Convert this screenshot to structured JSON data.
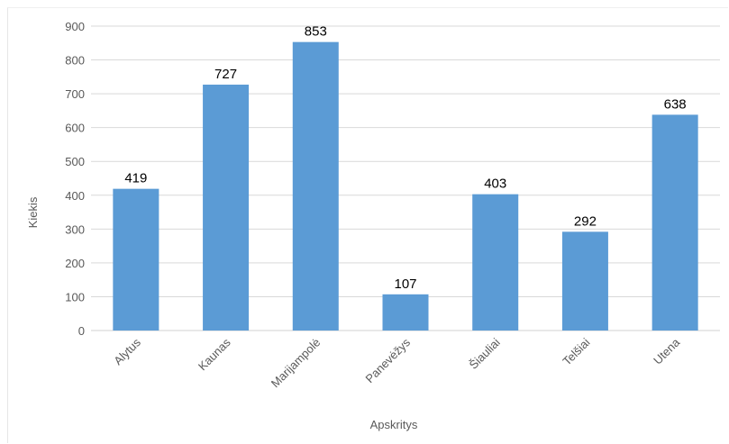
{
  "chart_data": {
    "type": "bar",
    "categories": [
      "Alytus",
      "Kaunas",
      "Marijampolė",
      "Panevėžys",
      "Šiauliai",
      "Telšiai",
      "Utena"
    ],
    "values": [
      419,
      727,
      853,
      107,
      403,
      292,
      638
    ],
    "data_labels": [
      "419",
      "727",
      "853",
      "107",
      "403",
      "292",
      "638"
    ],
    "xlabel": "Apskritys",
    "ylabel": "Kiekis",
    "ylim": [
      0,
      900
    ],
    "yticks": [
      "0",
      "100",
      "200",
      "300",
      "400",
      "500",
      "600",
      "700",
      "800",
      "900"
    ],
    "grid": "horizontal",
    "legend": "none",
    "colors": {
      "bar": "#5b9bd5",
      "grid": "#d9d9d9",
      "axis_text": "#595959"
    }
  }
}
